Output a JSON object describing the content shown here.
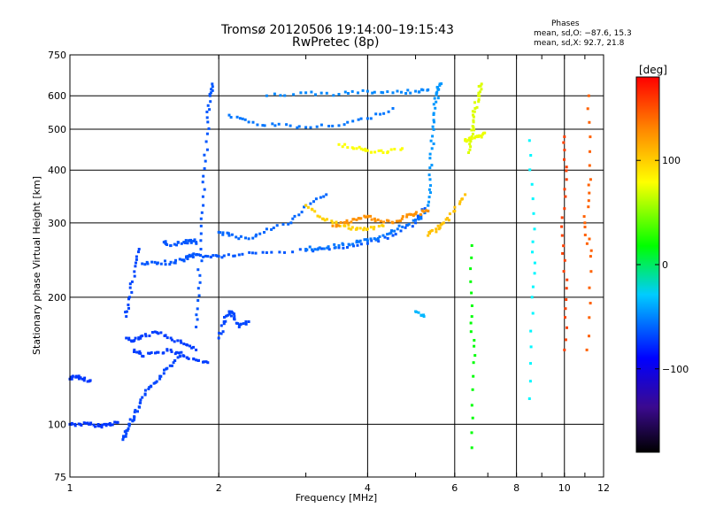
{
  "header": {
    "title": "Tromsø 20120506 19:14:00–19:15:43",
    "subtitle": "RwPretec (8p)",
    "phases_title": "Phases",
    "phases_line1": "mean, sd,O: −87.6, 15.3",
    "phases_line2": "mean, sd,X:  92.7, 21.8"
  },
  "chart_data": {
    "type": "scatter",
    "xlabel": "Frequency [MHz]",
    "ylabel": "Stationary phase Virtual Height [km]",
    "xscale": "log",
    "yscale": "log",
    "xlim": [
      1,
      12
    ],
    "ylim": [
      75,
      750
    ],
    "xticks": [
      1,
      2,
      4,
      6,
      8,
      10,
      12
    ],
    "xtick_labels": [
      "1",
      "2",
      "4",
      "6",
      "8",
      "10",
      "12"
    ],
    "yticks": [
      75,
      100,
      200,
      300,
      400,
      500,
      600,
      750
    ],
    "ytick_labels": [
      "75",
      "100",
      "200",
      "300",
      "400",
      "500",
      "600",
      "750"
    ],
    "grid": true,
    "colorbar": {
      "label": "[deg]",
      "range": [
        -180,
        180
      ],
      "ticks": [
        100,
        0,
        -100
      ],
      "tick_labels": [
        "100",
        "0",
        "−100"
      ],
      "colormap": "rainbow"
    },
    "series": [
      {
        "x": [
          1.0,
          1.05,
          1.1,
          1.15,
          1.2,
          1.25
        ],
        "y": [
          100,
          100,
          100,
          99,
          100,
          101
        ],
        "color": -120
      },
      {
        "x": [
          1.0,
          1.03,
          1.06,
          1.1
        ],
        "y": [
          128,
          130,
          128,
          127
        ],
        "color": -120
      },
      {
        "x": [
          1.28,
          1.3,
          1.32,
          1.35,
          1.38,
          1.42,
          1.48,
          1.55,
          1.62,
          1.68
        ],
        "y": [
          92,
          95,
          100,
          104,
          110,
          118,
          125,
          132,
          140,
          148
        ],
        "color": -115
      },
      {
        "x": [
          1.3,
          1.35,
          1.4,
          1.5,
          1.6,
          1.7,
          1.8
        ],
        "y": [
          160,
          158,
          162,
          165,
          160,
          155,
          150
        ],
        "color": -118
      },
      {
        "x": [
          1.35,
          1.4,
          1.5,
          1.6,
          1.7,
          1.8,
          1.9
        ],
        "y": [
          150,
          145,
          148,
          150,
          145,
          142,
          140
        ],
        "color": -118
      },
      {
        "x": [
          1.3,
          1.32,
          1.35,
          1.38
        ],
        "y": [
          180,
          200,
          230,
          260
        ],
        "color": -115
      },
      {
        "x": [
          1.4,
          1.5,
          1.6,
          1.7,
          1.75,
          1.8,
          1.9,
          2.0,
          2.2,
          2.5,
          3.0,
          3.5,
          4.0,
          4.5,
          5.0,
          5.3
        ],
        "y": [
          240,
          240,
          242,
          245,
          250,
          252,
          250,
          250,
          252,
          255,
          258,
          262,
          268,
          280,
          300,
          330
        ],
        "color": -110
      },
      {
        "x": [
          1.55,
          1.6,
          1.7,
          1.75,
          1.8
        ],
        "y": [
          270,
          265,
          270,
          272,
          270
        ],
        "color": -110
      },
      {
        "x": [
          1.8,
          1.82,
          1.84,
          1.86,
          1.88,
          1.9,
          1.92,
          1.94
        ],
        "y": [
          170,
          210,
          260,
          330,
          420,
          520,
          600,
          640
        ],
        "color": -110
      },
      {
        "x": [
          2.0,
          2.05,
          2.1,
          2.15,
          2.2,
          2.3
        ],
        "y": [
          160,
          175,
          185,
          180,
          170,
          175
        ],
        "color": -115
      },
      {
        "x": [
          2.0,
          2.1,
          2.3,
          2.5,
          2.8,
          3.0,
          3.3
        ],
        "y": [
          285,
          280,
          275,
          290,
          300,
          330,
          350
        ],
        "color": -105
      },
      {
        "x": [
          2.1,
          2.3,
          2.6,
          3.0,
          3.5,
          4.0,
          4.5
        ],
        "y": [
          540,
          520,
          510,
          505,
          510,
          530,
          560
        ],
        "color": -100
      },
      {
        "x": [
          2.5,
          3.0,
          3.5,
          4.0,
          4.5,
          5.0,
          5.3
        ],
        "y": [
          600,
          610,
          605,
          615,
          610,
          615,
          620
        ],
        "color": -95
      },
      {
        "x": [
          3.0,
          3.2,
          3.5,
          3.8,
          4.0,
          4.3,
          4.6,
          5.0,
          5.3
        ],
        "y": [
          260,
          262,
          265,
          270,
          272,
          280,
          290,
          305,
          320
        ],
        "color": -100
      },
      {
        "x": [
          3.0,
          3.2,
          3.4,
          3.6,
          3.8,
          4.0,
          4.3
        ],
        "y": [
          330,
          310,
          300,
          295,
          290,
          290,
          295
        ],
        "color": 115
      },
      {
        "x": [
          3.4,
          3.6,
          3.8,
          4.0,
          4.2,
          4.5,
          4.8,
          5.0,
          5.3
        ],
        "y": [
          295,
          300,
          305,
          310,
          305,
          300,
          310,
          315,
          320
        ],
        "color": 135
      },
      {
        "x": [
          3.5,
          3.8,
          4.0,
          4.3,
          4.7
        ],
        "y": [
          460,
          450,
          445,
          440,
          450
        ],
        "color": 100
      },
      {
        "x": [
          5.3,
          5.35,
          5.4,
          5.45,
          5.5,
          5.55,
          5.6
        ],
        "y": [
          330,
          380,
          450,
          520,
          580,
          620,
          640
        ],
        "color": -90
      },
      {
        "x": [
          5.3,
          5.5,
          5.7,
          6.0,
          6.3
        ],
        "y": [
          280,
          290,
          300,
          320,
          350
        ],
        "color": 120
      },
      {
        "x": [
          6.4,
          6.5,
          6.55,
          6.6,
          6.7,
          6.8
        ],
        "y": [
          440,
          480,
          520,
          560,
          600,
          640
        ],
        "color": 90
      },
      {
        "x": [
          6.3,
          6.5,
          6.7,
          6.9
        ],
        "y": [
          470,
          475,
          480,
          490
        ],
        "color": 95
      },
      {
        "x": [
          6.5,
          6.5,
          6.55,
          6.5
        ],
        "y": [
          265,
          180,
          140,
          88
        ],
        "color": 20
      },
      {
        "x": [
          5.0,
          5.2
        ],
        "y": [
          185,
          180
        ],
        "color": -80
      },
      {
        "x": [
          8.5,
          8.7,
          8.6,
          8.5
        ],
        "y": [
          470,
          290,
          200,
          115
        ],
        "color": -60
      },
      {
        "x": [
          10.0,
          10.1,
          9.9,
          10.1,
          10.0
        ],
        "y": [
          480,
          380,
          280,
          210,
          150
        ],
        "color": 160
      },
      {
        "x": [
          11.2,
          11.3,
          11.0,
          11.3,
          11.1
        ],
        "y": [
          600,
          380,
          300,
          250,
          150
        ],
        "color": 150
      }
    ]
  }
}
